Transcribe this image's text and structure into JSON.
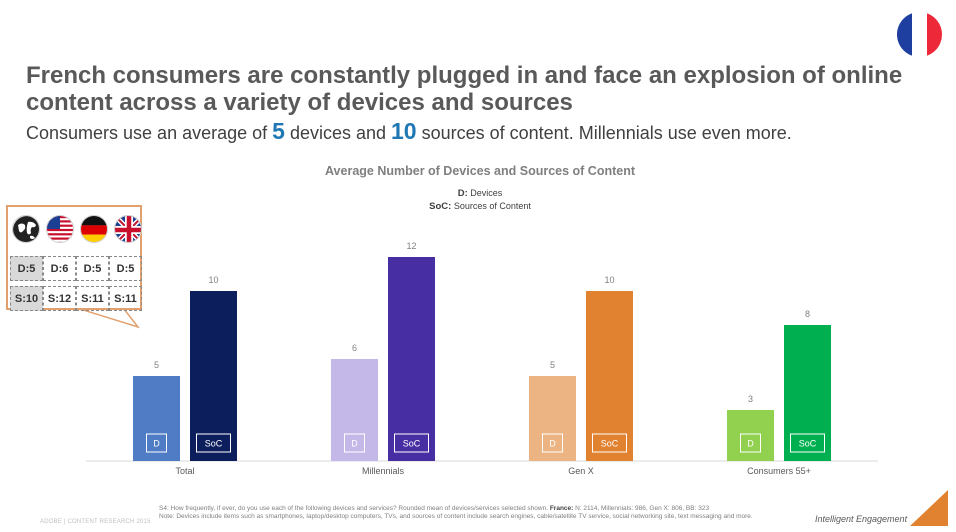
{
  "headline": "French consumers are constantly plugged in and face an explosion of online content across a variety of devices and sources",
  "subline": {
    "part1": "Consumers use an average of ",
    "devices": "5",
    "part2": " devices and ",
    "sources": "10",
    "part3": " sources of content. Millennials use even more."
  },
  "colors": {
    "flag_blue": "#1f3fa0",
    "flag_white": "#ffffff",
    "flag_red": "#ed2939"
  },
  "chart_data": {
    "type": "bar",
    "title": "Average Number of Devices and Sources of Content",
    "legend": {
      "d_key": "D:",
      "d_text": "Devices",
      "soc_key": "SoC:",
      "soc_text": "Sources of Content"
    },
    "categories": [
      "Total",
      "Millennials",
      "Gen X",
      "Consumers 55+"
    ],
    "series": [
      {
        "name": "D",
        "label": "D",
        "values": [
          5,
          6,
          5,
          3
        ],
        "colors": [
          "#4f7cc4",
          "#c4b8e8",
          "#ecb483",
          "#92d050"
        ]
      },
      {
        "name": "SoC",
        "label": "SoC",
        "values": [
          10,
          12,
          10,
          8
        ],
        "colors": [
          "#0c1f5c",
          "#482ea3",
          "#e0822f",
          "#00b050"
        ]
      }
    ],
    "ylim": [
      0,
      12
    ]
  },
  "callout": {
    "countries": [
      "global-icon",
      "usa-flag",
      "germany-flag",
      "uk-flag"
    ],
    "devices": [
      "D:5",
      "D:6",
      "D:5",
      "D:5"
    ],
    "sources": [
      "S:10",
      "S:12",
      "S:11",
      "S:11"
    ]
  },
  "footnote": {
    "line1a": "S4: How frequently, if ever, do you use each of the following devices and services? Rounded mean of devices/services selected shown.",
    "line1b": "France:",
    "line1c": "N: 2114, Millennials: 986, Gen X: 806, BB: 323",
    "line2": "Note: Devices include items such as smartphones, laptop/desktop computers, TVs, and sources of content include search engines, cable/satellite TV service, social networking site, text messaging and more."
  },
  "adobe_note": "ADOBE | CONTENT RESEARCH 2015",
  "brand": "Intelligent Engagement"
}
